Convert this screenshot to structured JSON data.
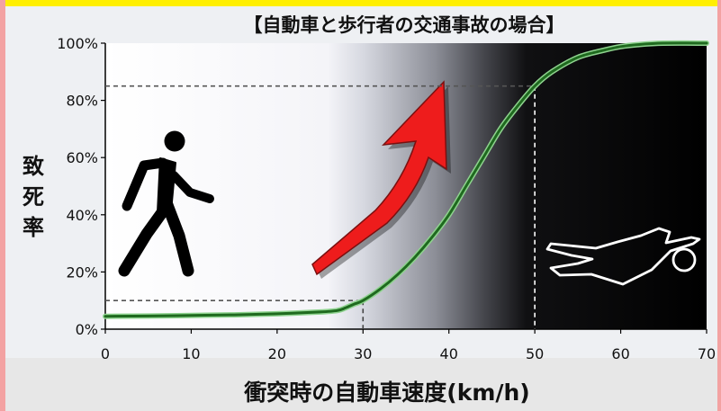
{
  "chart_data": {
    "type": "line",
    "title": "【自動車と歩行者の交通事故の場合】",
    "xlabel": "衝突時の自動車速度(km/h)",
    "ylabel": "致死率",
    "xlim": [
      0,
      70
    ],
    "ylim": [
      0,
      100
    ],
    "x_ticks": [
      "0",
      "10",
      "20",
      "30",
      "40",
      "50",
      "60",
      "70"
    ],
    "y_ticks": [
      "0%",
      "20%",
      "40%",
      "60%",
      "80%",
      "100%"
    ],
    "series": [
      {
        "x": [
          0,
          5,
          10,
          15,
          20,
          25,
          27,
          28,
          29,
          30,
          32,
          34,
          36,
          38,
          40,
          42,
          44,
          46,
          48,
          50,
          52,
          55,
          58,
          60,
          62,
          65,
          70
        ],
        "y": [
          4.5,
          4.6,
          4.8,
          5.0,
          5.4,
          6.0,
          6.5,
          7.5,
          8.8,
          10,
          14,
          19,
          25,
          32,
          40,
          50,
          60,
          70,
          78,
          85,
          90,
          95,
          97.5,
          98.8,
          99.5,
          100,
          100
        ]
      }
    ],
    "reference_points": [
      {
        "x": 30,
        "y": 10
      },
      {
        "x": 50,
        "y": 85
      }
    ],
    "grid": false
  },
  "colors": {
    "curve": "#1f6a1f",
    "curve_glow": "#8fd38f",
    "arrow": "#ee1c1c",
    "frame_top": "#ffef00",
    "frame_side": "#f3a2a2"
  },
  "icons": {
    "left": "walking-pedestrian-icon",
    "right": "fallen-body-outline-icon",
    "arrow": "upward-red-arrow-icon"
  }
}
